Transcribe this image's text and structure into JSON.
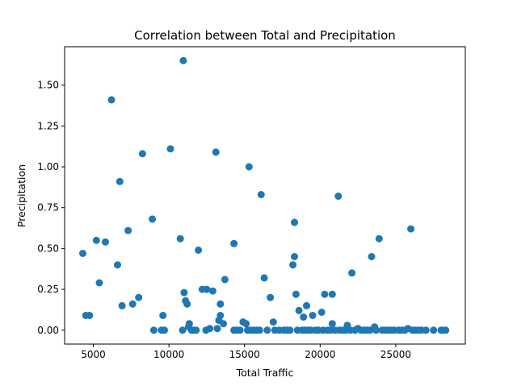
{
  "chart_data": {
    "type": "scatter",
    "title": "Correlation between Total and Precipitation",
    "xlabel": "Total Traffic",
    "ylabel": "Precipitation",
    "xlim": [
      3100,
      29600
    ],
    "ylim": [
      -0.085,
      1.735
    ],
    "xticks": [
      {
        "value": 5000,
        "label": "5000"
      },
      {
        "value": 10000,
        "label": "10000"
      },
      {
        "value": 15000,
        "label": "15000"
      },
      {
        "value": 20000,
        "label": "20000"
      },
      {
        "value": 25000,
        "label": "25000"
      }
    ],
    "yticks": [
      {
        "value": 0.0,
        "label": "0.00"
      },
      {
        "value": 0.25,
        "label": "0.25"
      },
      {
        "value": 0.5,
        "label": "0.50"
      },
      {
        "value": 0.75,
        "label": "0.75"
      },
      {
        "value": 1.0,
        "label": "1.00"
      },
      {
        "value": 1.25,
        "label": "1.25"
      },
      {
        "value": 1.5,
        "label": "1.50"
      }
    ],
    "grid": false,
    "marker_color": "#1f77b4",
    "points": [
      [
        4300,
        0.47
      ],
      [
        4500,
        0.09
      ],
      [
        4750,
        0.09
      ],
      [
        5200,
        0.55
      ],
      [
        5400,
        0.29
      ],
      [
        5800,
        0.54
      ],
      [
        6200,
        1.41
      ],
      [
        6600,
        0.4
      ],
      [
        6750,
        0.91
      ],
      [
        6900,
        0.15
      ],
      [
        7300,
        0.61
      ],
      [
        7600,
        0.16
      ],
      [
        8000,
        0.2
      ],
      [
        8250,
        1.08
      ],
      [
        8900,
        0.68
      ],
      [
        9000,
        0.0
      ],
      [
        9500,
        0.0
      ],
      [
        9600,
        0.09
      ],
      [
        9700,
        0.0
      ],
      [
        10100,
        1.11
      ],
      [
        10750,
        0.56
      ],
      [
        10900,
        0.0
      ],
      [
        10950,
        1.65
      ],
      [
        11000,
        0.23
      ],
      [
        11100,
        0.18
      ],
      [
        11200,
        0.16
      ],
      [
        11300,
        0.02
      ],
      [
        11350,
        0.04
      ],
      [
        11500,
        0.0
      ],
      [
        11600,
        0.0
      ],
      [
        11800,
        0.0
      ],
      [
        11950,
        0.49
      ],
      [
        12200,
        0.25
      ],
      [
        12450,
        0.0
      ],
      [
        12500,
        0.25
      ],
      [
        12700,
        0.01
      ],
      [
        12900,
        0.24
      ],
      [
        13100,
        1.09
      ],
      [
        13200,
        0.01
      ],
      [
        13300,
        0.06
      ],
      [
        13400,
        0.09
      ],
      [
        13400,
        0.16
      ],
      [
        13600,
        0.04
      ],
      [
        13700,
        0.31
      ],
      [
        14300,
        0.53
      ],
      [
        14300,
        0.0
      ],
      [
        14500,
        0.0
      ],
      [
        14700,
        0.0
      ],
      [
        14900,
        0.05
      ],
      [
        15100,
        0.04
      ],
      [
        15200,
        0.0
      ],
      [
        15300,
        1.0
      ],
      [
        15400,
        0.0
      ],
      [
        15600,
        0.0
      ],
      [
        15800,
        0.0
      ],
      [
        16000,
        0.0
      ],
      [
        16100,
        0.83
      ],
      [
        16300,
        0.32
      ],
      [
        16500,
        0.0
      ],
      [
        16700,
        0.2
      ],
      [
        16900,
        0.05
      ],
      [
        17000,
        0.0
      ],
      [
        17300,
        0.0
      ],
      [
        17600,
        0.0
      ],
      [
        17800,
        0.0
      ],
      [
        18000,
        0.0
      ],
      [
        18200,
        0.4
      ],
      [
        18300,
        0.66
      ],
      [
        18300,
        0.45
      ],
      [
        18400,
        0.22
      ],
      [
        18500,
        0.0
      ],
      [
        18600,
        0.12
      ],
      [
        18800,
        0.0
      ],
      [
        18900,
        0.08
      ],
      [
        19000,
        0.0
      ],
      [
        19100,
        0.15
      ],
      [
        19200,
        0.0
      ],
      [
        19400,
        0.0
      ],
      [
        19500,
        0.09
      ],
      [
        19700,
        0.0
      ],
      [
        19900,
        0.0
      ],
      [
        20100,
        0.11
      ],
      [
        20200,
        0.0
      ],
      [
        20300,
        0.22
      ],
      [
        20500,
        0.0
      ],
      [
        20700,
        0.0
      ],
      [
        20800,
        0.04
      ],
      [
        20800,
        0.22
      ],
      [
        21000,
        0.0
      ],
      [
        21200,
        0.82
      ],
      [
        21300,
        0.0
      ],
      [
        21500,
        0.0
      ],
      [
        21700,
        0.0
      ],
      [
        21800,
        0.03
      ],
      [
        22000,
        0.0
      ],
      [
        22100,
        0.35
      ],
      [
        22300,
        0.0
      ],
      [
        22500,
        0.01
      ],
      [
        22700,
        0.0
      ],
      [
        22900,
        0.0
      ],
      [
        23100,
        0.0
      ],
      [
        23300,
        0.0
      ],
      [
        23400,
        0.45
      ],
      [
        23600,
        0.02
      ],
      [
        23700,
        0.0
      ],
      [
        23900,
        0.56
      ],
      [
        24100,
        0.0
      ],
      [
        24300,
        0.0
      ],
      [
        24500,
        0.0
      ],
      [
        24700,
        0.0
      ],
      [
        24900,
        0.0
      ],
      [
        25200,
        0.0
      ],
      [
        25400,
        0.0
      ],
      [
        25600,
        0.0
      ],
      [
        25800,
        0.01
      ],
      [
        26000,
        0.62
      ],
      [
        26100,
        0.0
      ],
      [
        26300,
        0.0
      ],
      [
        26500,
        0.0
      ],
      [
        26700,
        0.0
      ],
      [
        27000,
        0.0
      ],
      [
        27500,
        0.0
      ],
      [
        28000,
        0.0
      ],
      [
        28100,
        0.0
      ],
      [
        28300,
        0.0
      ]
    ]
  }
}
